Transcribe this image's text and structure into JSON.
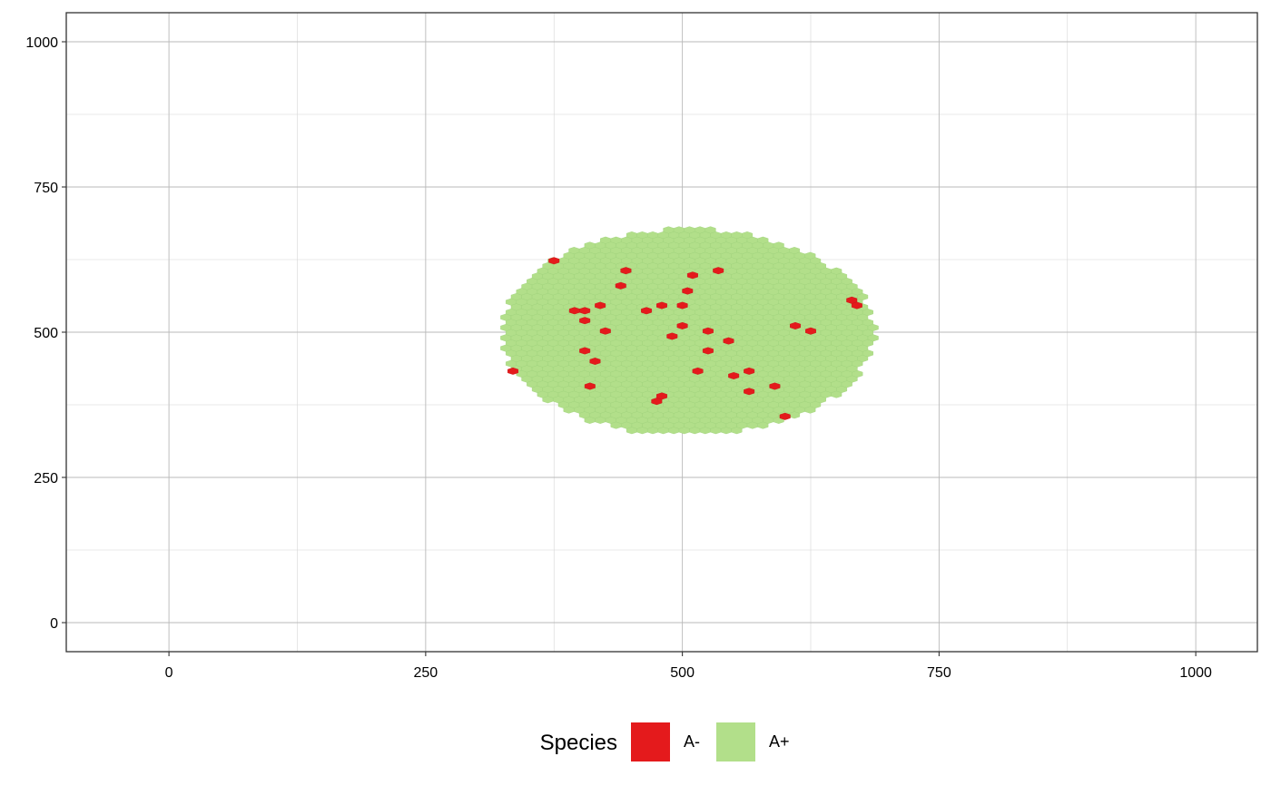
{
  "chart_data": {
    "type": "scatter",
    "title": "",
    "xlabel": "",
    "ylabel": "",
    "xlim": [
      -100,
      1060
    ],
    "ylim": [
      -50,
      1050
    ],
    "x_ticks": [
      0,
      250,
      500,
      750,
      1000
    ],
    "y_ticks": [
      0,
      250,
      500,
      750,
      1000
    ],
    "x_tick_labels": [
      "0",
      "250",
      "500",
      "750",
      "1000"
    ],
    "y_tick_labels": [
      "0",
      "250",
      "500",
      "750",
      "1000"
    ],
    "grid": true,
    "legend": {
      "position": "bottom",
      "title": "Species",
      "entries": [
        {
          "label": "A-",
          "color": "#E41A1C"
        },
        {
          "label": "A+",
          "color": "#B2DF8A"
        }
      ]
    },
    "colony": {
      "series": "A+",
      "color": "#B2DF8A",
      "edge_color": "#9ED27A",
      "center": [
        505,
        500
      ],
      "radius_x": 182,
      "radius_y": 178,
      "x_range": [
        323,
        687
      ],
      "y_range": [
        322,
        678
      ]
    },
    "series": [
      {
        "name": "A-",
        "color": "#E41A1C",
        "points": [
          {
            "x": 375,
            "y": 623
          },
          {
            "x": 445,
            "y": 606
          },
          {
            "x": 510,
            "y": 598
          },
          {
            "x": 535,
            "y": 606
          },
          {
            "x": 440,
            "y": 580
          },
          {
            "x": 505,
            "y": 571
          },
          {
            "x": 665,
            "y": 555
          },
          {
            "x": 670,
            "y": 546
          },
          {
            "x": 420,
            "y": 546
          },
          {
            "x": 480,
            "y": 546
          },
          {
            "x": 500,
            "y": 546
          },
          {
            "x": 395,
            "y": 537
          },
          {
            "x": 405,
            "y": 537
          },
          {
            "x": 465,
            "y": 537
          },
          {
            "x": 405,
            "y": 520
          },
          {
            "x": 500,
            "y": 511
          },
          {
            "x": 610,
            "y": 511
          },
          {
            "x": 425,
            "y": 502
          },
          {
            "x": 525,
            "y": 502
          },
          {
            "x": 625,
            "y": 502
          },
          {
            "x": 490,
            "y": 493
          },
          {
            "x": 545,
            "y": 485
          },
          {
            "x": 405,
            "y": 468
          },
          {
            "x": 525,
            "y": 468
          },
          {
            "x": 415,
            "y": 450
          },
          {
            "x": 335,
            "y": 433
          },
          {
            "x": 515,
            "y": 433
          },
          {
            "x": 565,
            "y": 433
          },
          {
            "x": 550,
            "y": 425
          },
          {
            "x": 410,
            "y": 407
          },
          {
            "x": 590,
            "y": 407
          },
          {
            "x": 565,
            "y": 398
          },
          {
            "x": 480,
            "y": 390
          },
          {
            "x": 475,
            "y": 381
          },
          {
            "x": 600,
            "y": 355
          }
        ]
      }
    ]
  }
}
